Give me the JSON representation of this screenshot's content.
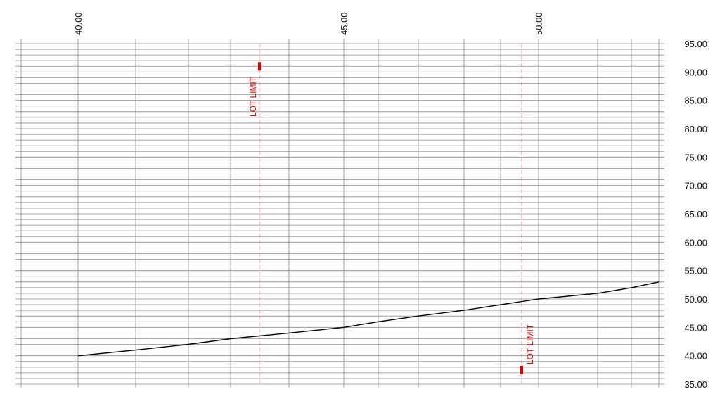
{
  "chart_data": {
    "type": "line",
    "title": "",
    "xlabel": "",
    "ylabel": "",
    "ylim": [
      35,
      95
    ],
    "y_ticks": [
      "35.00",
      "40.00",
      "45.00",
      "50.00",
      "55.00",
      "60.00",
      "65.00",
      "70.00",
      "75.00",
      "80.00",
      "85.00",
      "90.00",
      "95.00"
    ],
    "y_minor_grid_step": 1,
    "grid": true,
    "top_labels": [
      "40.00",
      "45.00",
      "50.00"
    ],
    "profile_elevations": [
      40,
      41,
      42,
      43,
      44,
      45,
      46,
      47,
      48,
      49,
      50,
      51,
      52,
      53
    ],
    "line_color": "#000000",
    "grid_color": "#8a8a8a",
    "annotations": [
      {
        "label": "LOT LIMIT",
        "color": "#e00000",
        "marker_elevation": 91
      },
      {
        "label": "LOT LIMIT",
        "color": "#e00000",
        "marker_elevation": 37.5
      }
    ]
  }
}
